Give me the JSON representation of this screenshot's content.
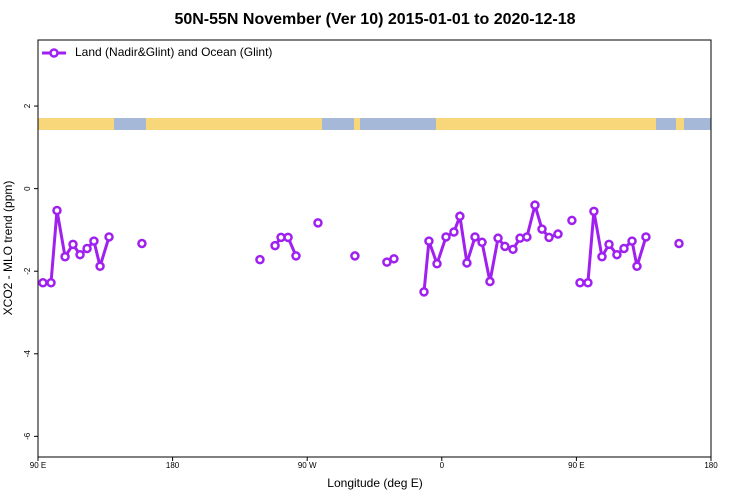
{
  "chart_data": {
    "type": "line",
    "title": "50N-55N November (Ver 10)   2015-01-01 to 2020-12-18",
    "x_label": "Longitude (deg E)",
    "y_label": "XCO2 - MLO trend (ppm)",
    "xlim": [
      90,
      540
    ],
    "xticks": [
      {
        "value": 90,
        "label": "90 E"
      },
      180,
      {
        "value": 270,
        "label": "90 W"
      },
      {
        "value": 360,
        "label": "0"
      },
      {
        "value": 450,
        "label": "90 E"
      },
      180.0
    ],
    "ylim": [
      -6.5,
      3.6
    ],
    "yticks": [
      -6,
      -4,
      -2,
      0,
      2
    ],
    "legend": "upper left",
    "series": [
      {
        "name": "Land (Nadir&Glint) and Ocean (Glint)",
        "color": "#a020f0",
        "x": [
          93.3,
          98.7,
          102.7,
          108.1,
          113.4,
          118.1,
          122.8,
          127.4,
          131.5,
          137.5,
          null,
          159.5,
          null,
          238.4,
          null,
          248.5,
          252.5,
          257.2,
          262.5,
          null,
          277.2,
          null,
          301.9,
          null,
          323.3,
          328.0,
          null,
          348.1,
          351.4,
          356.8,
          362.8,
          368.1,
          372.1,
          376.8,
          382.2,
          386.9,
          392.2,
          397.6,
          402.2,
          407.6,
          412.3,
          416.9,
          422.3,
          427.0,
          431.7,
          437.7,
          null,
          447.0,
          null,
          452.4,
          457.7,
          461.7,
          467.1,
          471.8,
          477.1,
          481.8,
          487.2,
          490.5,
          496.5,
          null,
          518.6
        ],
        "values": [
          -2.28,
          -2.28,
          -0.53,
          -1.65,
          -1.35,
          -1.6,
          -1.45,
          -1.27,
          -1.88,
          -1.17,
          null,
          -1.33,
          null,
          -1.72,
          null,
          -1.38,
          -1.18,
          -1.18,
          -1.63,
          null,
          -0.83,
          null,
          -1.63,
          null,
          -1.78,
          -1.7,
          null,
          -2.5,
          -1.27,
          -1.82,
          -1.17,
          -1.05,
          -0.67,
          -1.8,
          -1.17,
          -1.3,
          -2.25,
          -1.2,
          -1.4,
          -1.47,
          -1.2,
          -1.17,
          -0.4,
          -0.98,
          -1.18,
          -1.1,
          null,
          -0.77,
          null,
          -2.28,
          -2.28,
          -0.55,
          -1.65,
          -1.35,
          -1.6,
          -1.45,
          -1.27,
          -1.88,
          -1.17,
          null,
          -1.33
        ]
      }
    ]
  }
}
